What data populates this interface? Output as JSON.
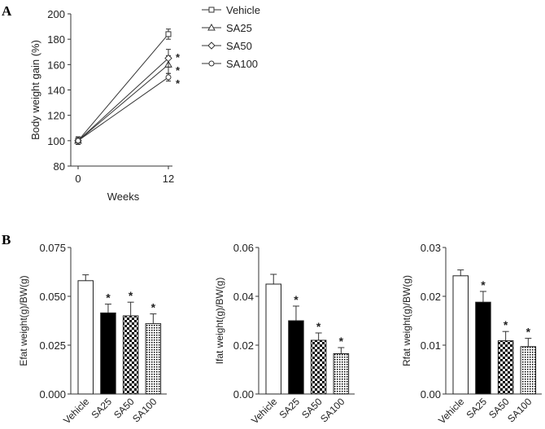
{
  "panel_labels": [
    "A",
    "B"
  ],
  "chart_data": [
    {
      "type": "line",
      "xlabel": "Weeks",
      "ylabel": "Body weight gain (%)",
      "x": [
        0,
        12
      ],
      "xticks": [
        "0",
        "12"
      ],
      "ylim": [
        80,
        200
      ],
      "yticks": [
        "80",
        "100",
        "120",
        "140",
        "160",
        "180",
        "200"
      ],
      "legend_position": "top-right",
      "series": [
        {
          "name": "Vehicle",
          "marker": "square",
          "values": [
            100,
            184
          ],
          "errors": [
            3,
            4
          ],
          "sig": [
            "",
            ""
          ]
        },
        {
          "name": "SA25",
          "marker": "triangle",
          "values": [
            100,
            160
          ],
          "errors": [
            3,
            7
          ],
          "sig": [
            "",
            "*"
          ]
        },
        {
          "name": "SA50",
          "marker": "diamond",
          "values": [
            100,
            165
          ],
          "errors": [
            3,
            7
          ],
          "sig": [
            "",
            "*"
          ]
        },
        {
          "name": "SA100",
          "marker": "circle",
          "values": [
            100,
            150
          ],
          "errors": [
            3,
            3
          ],
          "sig": [
            "",
            "*"
          ]
        }
      ]
    },
    {
      "type": "bar",
      "ylabel": "Efat weight(g)/BW(g)",
      "categories": [
        "Vehicle",
        "SA25",
        "SA50",
        "SA100"
      ],
      "values": [
        0.058,
        0.0415,
        0.04,
        0.036
      ],
      "errors": [
        0.003,
        0.0045,
        0.007,
        0.005
      ],
      "sig": [
        "",
        "*",
        "*",
        "*"
      ],
      "ylim": [
        0,
        0.075
      ],
      "yticks": [
        "0.000",
        "0.025",
        "0.050",
        "0.075"
      ]
    },
    {
      "type": "bar",
      "ylabel": "Ifat weight(g)/BW(g)",
      "categories": [
        "Vehicle",
        "SA25",
        "SA50",
        "SA100"
      ],
      "values": [
        0.045,
        0.03,
        0.022,
        0.0165
      ],
      "errors": [
        0.004,
        0.006,
        0.003,
        0.0025
      ],
      "sig": [
        "",
        "*",
        "*",
        "*"
      ],
      "ylim": [
        0,
        0.06
      ],
      "yticks": [
        "0.00",
        "0.02",
        "0.04",
        "0.06"
      ]
    },
    {
      "type": "bar",
      "ylabel": "Rfat weight(g)/BW(g)",
      "categories": [
        "Vehicle",
        "SA25",
        "SA50",
        "SA100"
      ],
      "values": [
        0.0242,
        0.0188,
        0.0109,
        0.0097
      ],
      "errors": [
        0.0012,
        0.0022,
        0.0019,
        0.0017
      ],
      "sig": [
        "",
        "*",
        "*",
        "*"
      ],
      "ylim": [
        0,
        0.03
      ],
      "yticks": [
        "0.00",
        "0.01",
        "0.02",
        "0.03"
      ]
    }
  ],
  "bar_fills": [
    "white",
    "black",
    "checker",
    "dots"
  ]
}
